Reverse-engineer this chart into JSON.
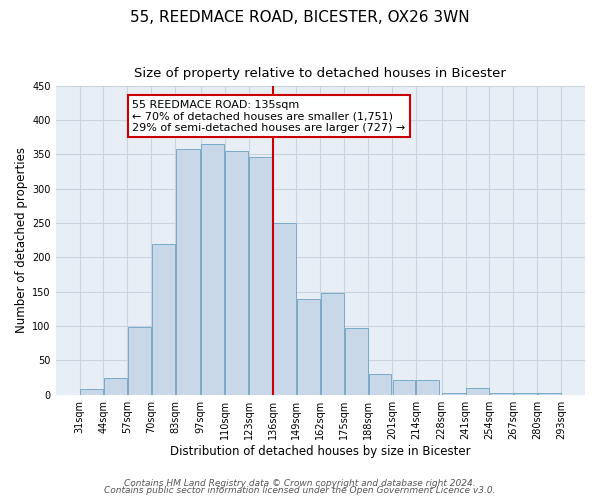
{
  "title": "55, REEDMACE ROAD, BICESTER, OX26 3WN",
  "subtitle": "Size of property relative to detached houses in Bicester",
  "xlabel": "Distribution of detached houses by size in Bicester",
  "ylabel": "Number of detached properties",
  "bar_left_edges": [
    31,
    44,
    57,
    70,
    83,
    97,
    110,
    123,
    136,
    149,
    162,
    175,
    188,
    201,
    214,
    228,
    241,
    254,
    267,
    280
  ],
  "bar_widths": [
    13,
    13,
    13,
    13,
    14,
    13,
    13,
    13,
    13,
    13,
    13,
    13,
    13,
    13,
    13,
    14,
    13,
    13,
    13,
    13
  ],
  "bar_heights": [
    8,
    25,
    98,
    220,
    358,
    365,
    355,
    347,
    250,
    140,
    148,
    97,
    30,
    22,
    22,
    3,
    10,
    2,
    2,
    2
  ],
  "bar_color": "#c8d8e8",
  "bar_edge_color": "#7aaac8",
  "tick_labels": [
    "31sqm",
    "44sqm",
    "57sqm",
    "70sqm",
    "83sqm",
    "97sqm",
    "110sqm",
    "123sqm",
    "136sqm",
    "149sqm",
    "162sqm",
    "175sqm",
    "188sqm",
    "201sqm",
    "214sqm",
    "228sqm",
    "241sqm",
    "254sqm",
    "267sqm",
    "280sqm",
    "293sqm"
  ],
  "tick_positions": [
    31,
    44,
    57,
    70,
    83,
    97,
    110,
    123,
    136,
    149,
    162,
    175,
    188,
    201,
    214,
    228,
    241,
    254,
    267,
    280,
    293
  ],
  "ylim": [
    0,
    450
  ],
  "xlim": [
    18,
    306
  ],
  "yticks": [
    0,
    50,
    100,
    150,
    200,
    250,
    300,
    350,
    400,
    450
  ],
  "vline_x": 136,
  "vline_color": "#cc0000",
  "annotation_title": "55 REEDMACE ROAD: 135sqm",
  "annotation_line1": "← 70% of detached houses are smaller (1,751)",
  "annotation_line2": "29% of semi-detached houses are larger (727) →",
  "footer_line1": "Contains HM Land Registry data © Crown copyright and database right 2024.",
  "footer_line2": "Contains public sector information licensed under the Open Government Licence v3.0.",
  "bg_color": "#ffffff",
  "plot_bg_color": "#e8eef5",
  "grid_color": "#c8d4de",
  "title_fontsize": 11,
  "subtitle_fontsize": 9.5,
  "axis_label_fontsize": 8.5,
  "tick_fontsize": 7,
  "annotation_fontsize": 8,
  "footer_fontsize": 6.5
}
